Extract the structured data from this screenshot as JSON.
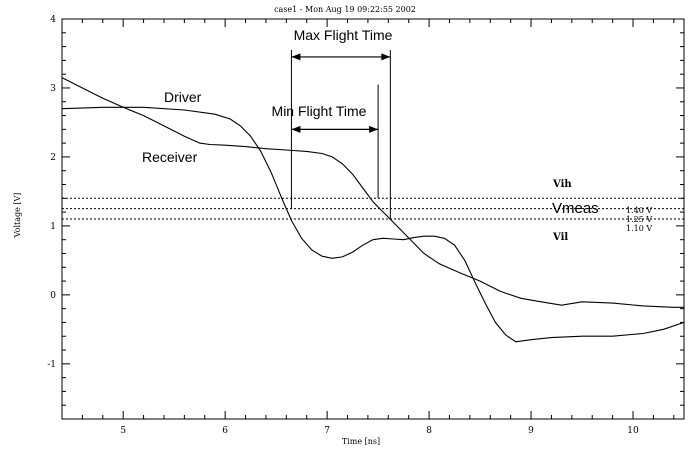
{
  "chart_data": {
    "type": "line",
    "title": "case1 - Mon Aug 19 09:22:55 2002",
    "xlabel": "Time [ns]",
    "ylabel": "Voltage [V]",
    "xlim": [
      4.4,
      10.5
    ],
    "ylim": [
      -1.8,
      4.0
    ],
    "xticks": [
      5,
      6,
      7,
      8,
      9,
      10
    ],
    "yticks": [
      -1,
      0,
      1,
      2,
      3,
      4
    ],
    "grid": false,
    "series": [
      {
        "name": "Driver",
        "color": "#000000",
        "x": [
          4.4,
          4.8,
          5.2,
          5.6,
          5.9,
          6.05,
          6.15,
          6.25,
          6.35,
          6.45,
          6.55,
          6.65,
          6.75,
          6.85,
          6.95,
          7.05,
          7.15,
          7.25,
          7.35,
          7.45,
          7.55,
          7.65,
          7.75,
          7.85,
          7.95,
          8.05,
          8.15,
          8.25,
          8.35,
          8.45,
          8.55,
          8.65,
          8.75,
          8.85,
          9.0,
          9.2,
          9.5,
          9.8,
          10.1,
          10.3,
          10.5
        ],
        "y": [
          2.7,
          2.72,
          2.72,
          2.68,
          2.62,
          2.55,
          2.45,
          2.3,
          2.08,
          1.78,
          1.42,
          1.08,
          0.82,
          0.65,
          0.56,
          0.53,
          0.55,
          0.62,
          0.72,
          0.8,
          0.82,
          0.81,
          0.8,
          0.83,
          0.85,
          0.85,
          0.82,
          0.72,
          0.5,
          0.18,
          -0.12,
          -0.4,
          -0.58,
          -0.68,
          -0.65,
          -0.62,
          -0.6,
          -0.6,
          -0.56,
          -0.5,
          -0.4
        ]
      },
      {
        "name": "Receiver",
        "color": "#000000",
        "x": [
          4.4,
          4.6,
          4.8,
          5.0,
          5.2,
          5.4,
          5.6,
          5.75,
          5.85,
          6.0,
          6.2,
          6.4,
          6.6,
          6.8,
          6.95,
          7.05,
          7.15,
          7.25,
          7.35,
          7.45,
          7.55,
          7.65,
          7.75,
          7.85,
          7.95,
          8.1,
          8.3,
          8.5,
          8.7,
          8.9,
          9.1,
          9.3,
          9.5,
          9.8,
          10.1,
          10.4,
          10.5
        ],
        "y": [
          3.15,
          3.0,
          2.85,
          2.72,
          2.6,
          2.45,
          2.3,
          2.2,
          2.18,
          2.17,
          2.15,
          2.12,
          2.1,
          2.08,
          2.05,
          2.0,
          1.9,
          1.75,
          1.55,
          1.35,
          1.2,
          1.05,
          0.9,
          0.75,
          0.6,
          0.45,
          0.32,
          0.2,
          0.05,
          -0.05,
          -0.1,
          -0.15,
          -0.1,
          -0.12,
          -0.16,
          -0.18,
          -0.18
        ]
      }
    ],
    "reference_lines": [
      {
        "name": "Vih",
        "value": 1.4,
        "value_label": "1.40 V"
      },
      {
        "name": "Vmeas",
        "value": 1.25,
        "value_label": "1.25 V"
      },
      {
        "name": "Vil",
        "value": 1.1,
        "value_label": "1.10 V"
      }
    ],
    "annotations": {
      "max_flight_time": {
        "label": "Max Flight Time",
        "x_start": 6.65,
        "x_end": 7.62,
        "y": 3.45
      },
      "min_flight_time": {
        "label": "Min Flight Time",
        "x_start": 6.65,
        "x_end": 7.5,
        "y": 2.4
      },
      "driver_label": {
        "label": "Driver",
        "x": 5.4,
        "y": 2.85
      },
      "receiver_label": {
        "label": "Receiver",
        "x": 5.15,
        "y": 1.98
      },
      "marker_lines": [
        {
          "x": 6.65,
          "y_top": 3.55,
          "y_bottom": 1.25
        },
        {
          "x": 7.5,
          "y_top": 3.05,
          "y_bottom": 1.4
        },
        {
          "x": 7.62,
          "y_top": 3.55,
          "y_bottom": 1.1
        }
      ]
    },
    "line_color": "#000000",
    "background": "#ffffff"
  }
}
